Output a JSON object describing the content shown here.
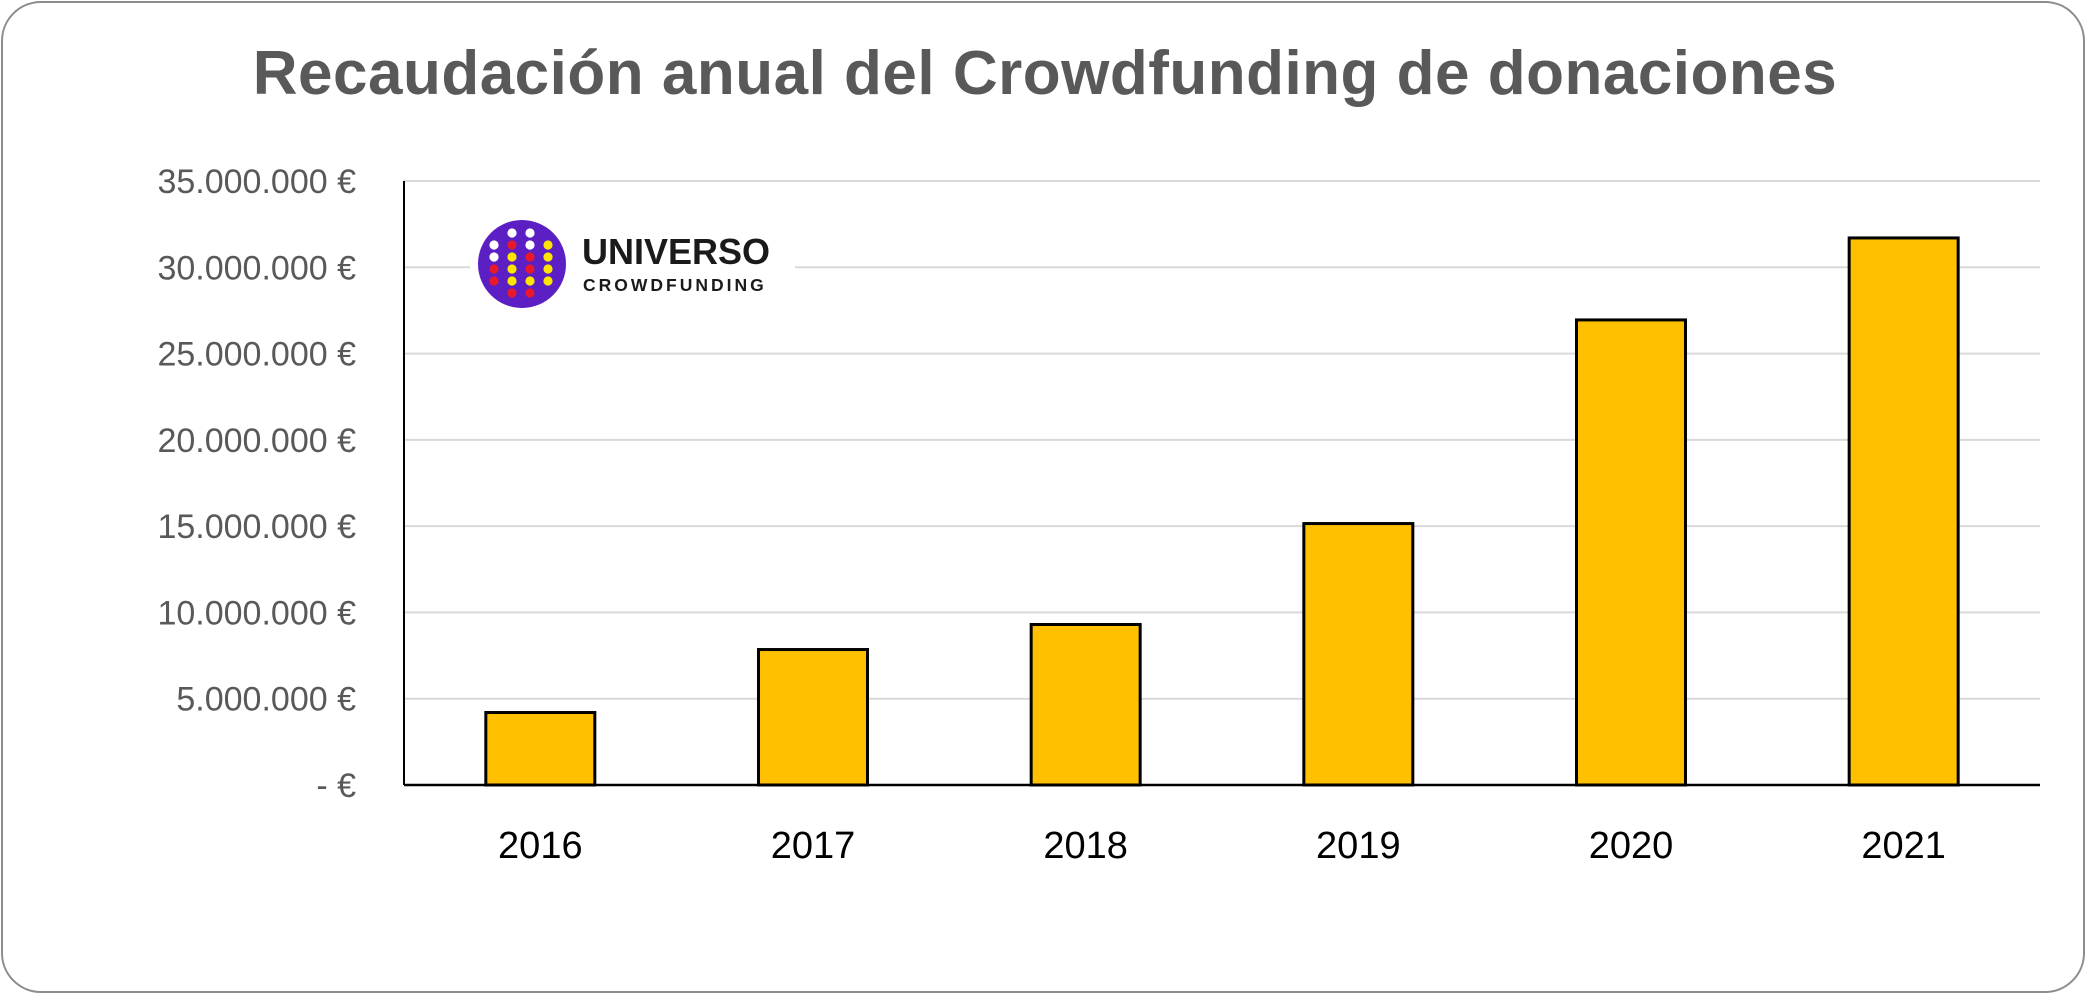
{
  "chart_data": {
    "type": "bar",
    "title": "Recaudación anual del Crowdfunding de donaciones",
    "categories": [
      "2016",
      "2017",
      "2018",
      "2019",
      "2020",
      "2021"
    ],
    "values": [
      4200000,
      7850000,
      9300000,
      15150000,
      26950000,
      31700000
    ],
    "ylim": [
      0,
      35000000
    ],
    "y_ticks": [
      0,
      5000000,
      10000000,
      15000000,
      20000000,
      25000000,
      30000000,
      35000000
    ],
    "y_tick_labels": [
      "-   €",
      "5.000.000 €",
      "10.000.000 €",
      "15.000.000 €",
      "20.000.000 €",
      "25.000.000 €",
      "30.000.000 €",
      "35.000.000 €"
    ],
    "xlabel": "",
    "ylabel": "",
    "grid": true,
    "legend": "none",
    "colors": {
      "bar_fill": "#FFC000",
      "bar_stroke": "#000000",
      "grid": "#d9d9d9",
      "axis": "#000000"
    }
  },
  "logo": {
    "word": "UNIVERSO",
    "sub": "CROWDFUNDING",
    "circle_color": "#5b1fc4",
    "dot_colors": [
      "#ffffff",
      "#e8192c",
      "#ffe600"
    ]
  }
}
